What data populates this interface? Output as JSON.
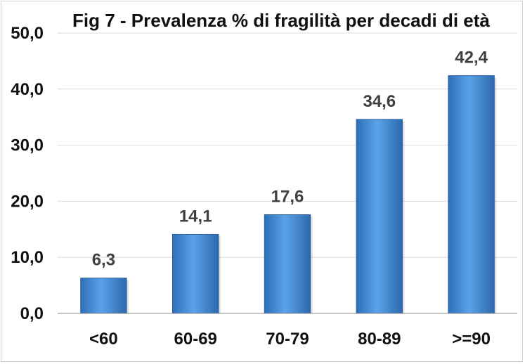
{
  "chart_data": {
    "type": "bar",
    "title": "Fig 7 - Prevalenza % di fragilità per decadi di età",
    "categories": [
      "<60",
      "60-69",
      "70-79",
      "80-89",
      ">=90"
    ],
    "values": [
      6.3,
      14.1,
      17.6,
      34.6,
      42.4
    ],
    "data_labels": [
      "6,3",
      "14,1",
      "17,6",
      "34,6",
      "42,4"
    ],
    "ylim": [
      0,
      50
    ],
    "yticks": [
      0,
      10,
      20,
      30,
      40,
      50
    ],
    "ytick_labels": [
      "0,0",
      "10,0",
      "20,0",
      "30,0",
      "40,0",
      "50,0"
    ],
    "grid": true,
    "legend": "none",
    "bar_color": "#4f94d6"
  }
}
